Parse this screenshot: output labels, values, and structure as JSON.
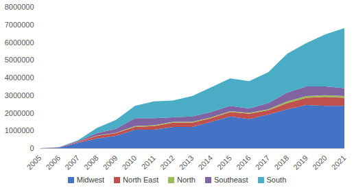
{
  "chart_data": {
    "type": "area",
    "stacked": true,
    "grid": false,
    "legend": "bottom",
    "x": [
      2005,
      2006,
      2007,
      2008,
      2009,
      2010,
      2011,
      2012,
      2013,
      2014,
      2015,
      2016,
      2017,
      2018,
      2019,
      2020,
      2021
    ],
    "xlim": [
      2005,
      2021
    ],
    "xticks": [
      2005,
      2006,
      2007,
      2008,
      2009,
      2010,
      2011,
      2012,
      2013,
      2014,
      2015,
      2016,
      2017,
      2018,
      2019,
      2020,
      2021
    ],
    "ylim": [
      0,
      8000000
    ],
    "yticks": [
      0,
      1000000,
      2000000,
      3000000,
      4000000,
      5000000,
      6000000,
      7000000,
      8000000
    ],
    "series": [
      {
        "name": "Midwest",
        "color": "#4472c4",
        "values": [
          0,
          40000,
          300000,
          550000,
          700000,
          1050000,
          1050000,
          1200000,
          1200000,
          1500000,
          1800000,
          1650000,
          1900000,
          2200000,
          2450000,
          2400000,
          2400000
        ]
      },
      {
        "name": "North East",
        "color": "#c0504d",
        "values": [
          0,
          10000,
          50000,
          150000,
          150000,
          150000,
          200000,
          250000,
          250000,
          200000,
          250000,
          300000,
          250000,
          350000,
          400000,
          500000,
          450000
        ]
      },
      {
        "name": "North",
        "color": "#9bbb59",
        "values": [
          0,
          0,
          10000,
          20000,
          20000,
          50000,
          50000,
          50000,
          50000,
          50000,
          50000,
          50000,
          50000,
          100000,
          100000,
          100000,
          100000
        ]
      },
      {
        "name": "Southeast",
        "color": "#8064a2",
        "values": [
          0,
          5000,
          50000,
          130000,
          230000,
          450000,
          400000,
          250000,
          300000,
          300000,
          300000,
          250000,
          350000,
          500000,
          550000,
          500000,
          450000
        ]
      },
      {
        "name": "South",
        "color": "#4bacc6",
        "values": [
          0,
          5000,
          40000,
          300000,
          500000,
          700000,
          950000,
          950000,
          1150000,
          1400000,
          1550000,
          1550000,
          1750000,
          2200000,
          2450000,
          2950000,
          3400000
        ]
      }
    ]
  }
}
